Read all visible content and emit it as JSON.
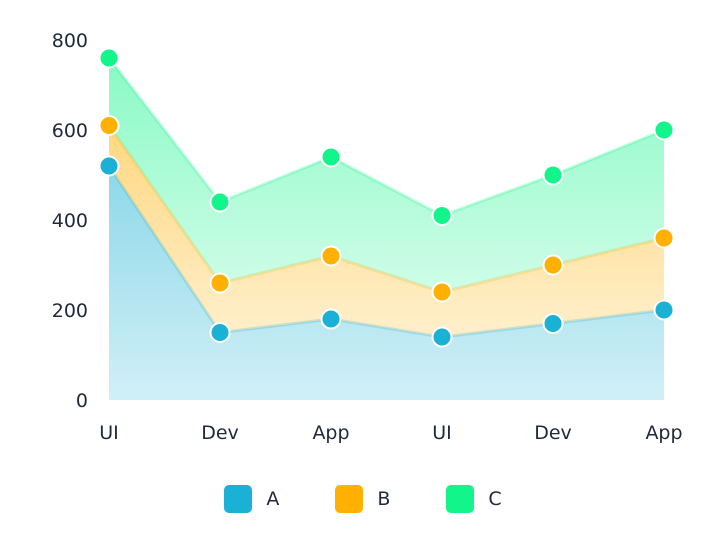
{
  "chart_data": {
    "type": "area",
    "stacked": true,
    "categories": [
      "UI",
      "Dev",
      "App",
      "UI",
      "Dev",
      "App"
    ],
    "series": [
      {
        "name": "A",
        "values": [
          520,
          150,
          180,
          140,
          170,
          200
        ],
        "color": "#1ab1d4"
      },
      {
        "name": "B",
        "values": [
          90,
          110,
          140,
          100,
          130,
          160
        ],
        "color": "#ffb000"
      },
      {
        "name": "C",
        "values": [
          150,
          180,
          220,
          170,
          200,
          240
        ],
        "color": "#12f58a"
      }
    ],
    "ylim": [
      0,
      800
    ],
    "yticks": [
      0,
      200,
      400,
      600,
      800
    ],
    "grid": false,
    "legend": "bottom",
    "title": "",
    "xlabel": "",
    "ylabel": ""
  }
}
